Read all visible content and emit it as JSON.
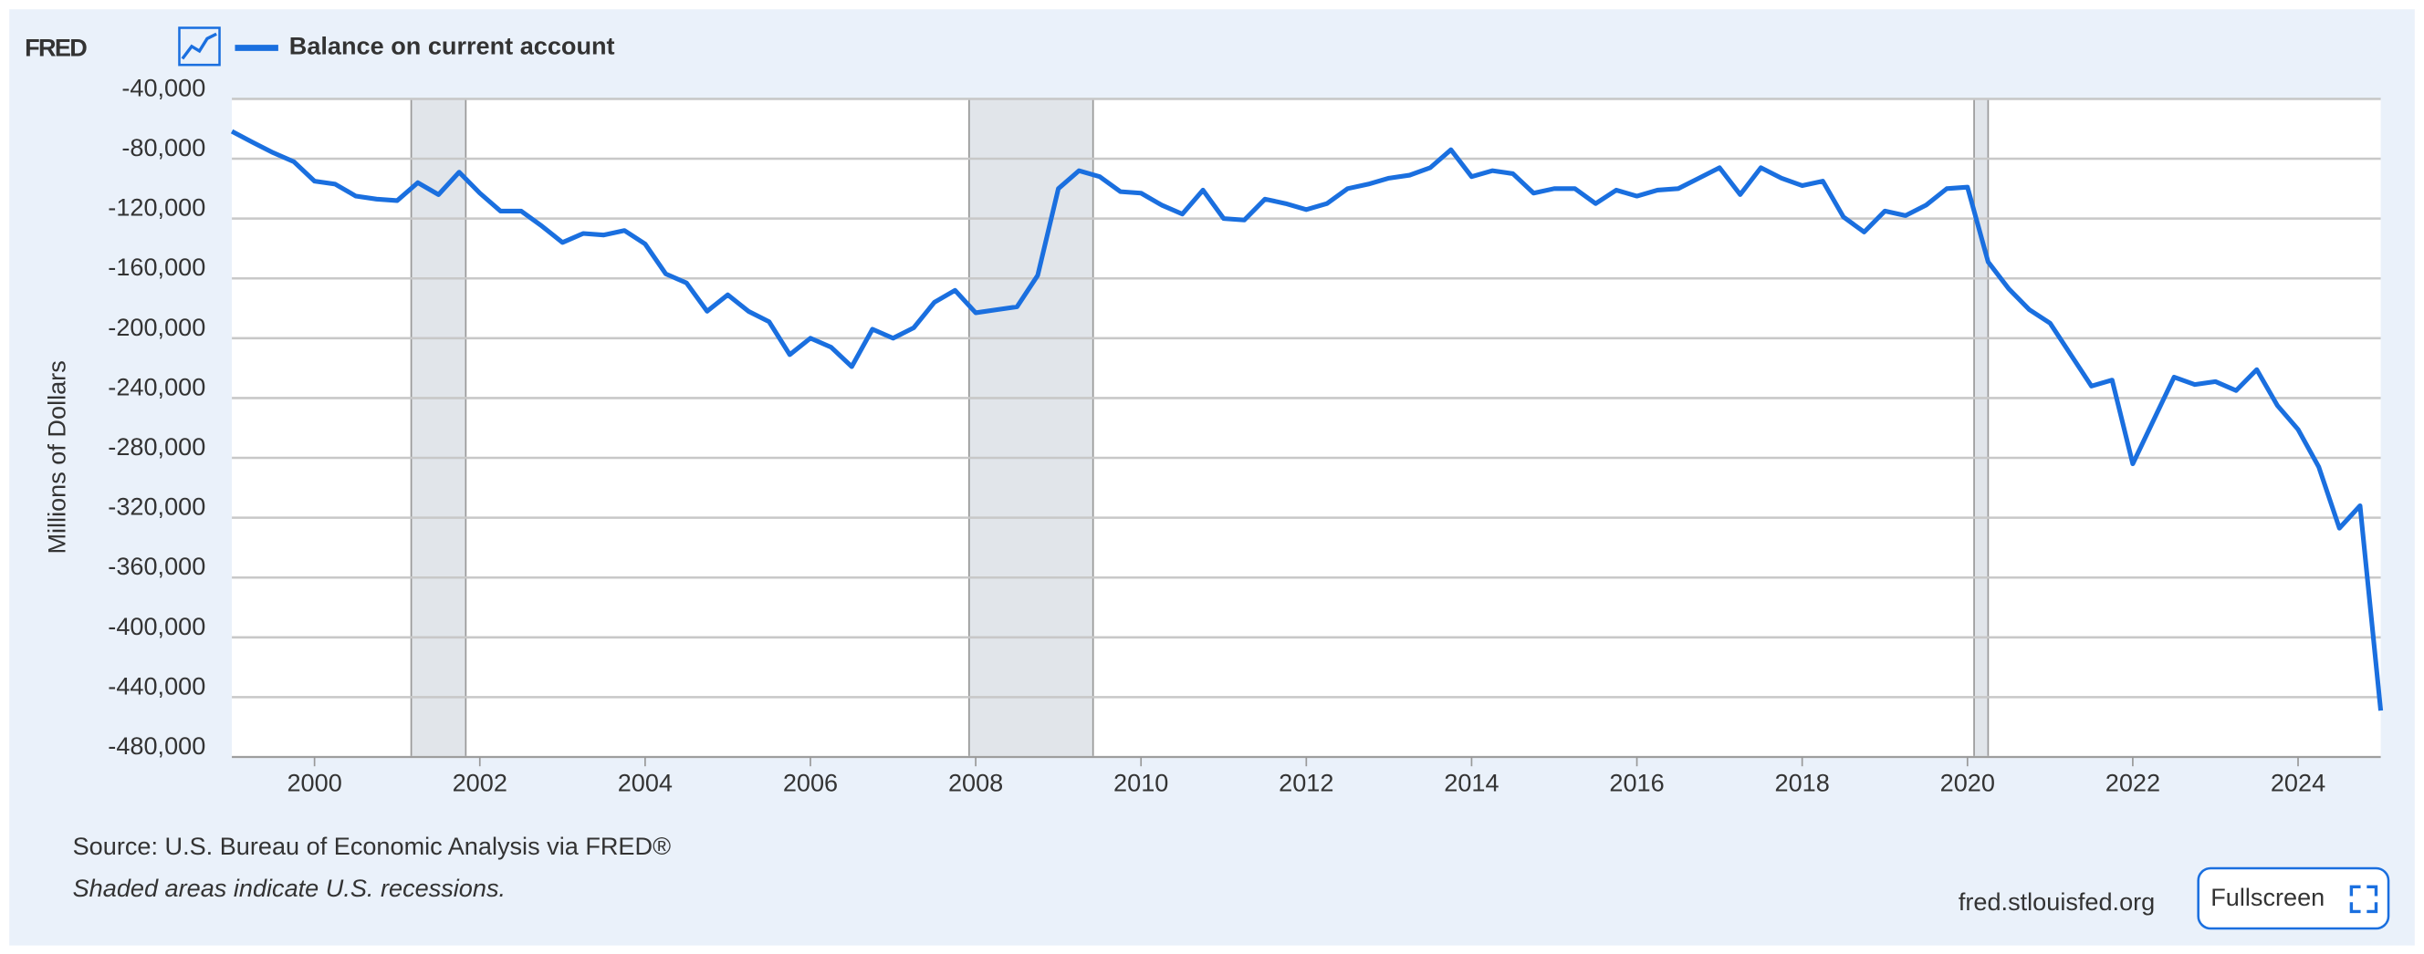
{
  "chart_data": {
    "type": "line",
    "logo": "FRED",
    "ylabel": "Millions of Dollars",
    "source": "Source: U.S. Bureau of Economic Analysis via FRED®",
    "note": "Shaded areas indicate U.S. recessions.",
    "site": "fred.stlouisfed.org",
    "button": "Fullscreen",
    "xlim": [
      1999,
      2025
    ],
    "xticks": [
      2000,
      2002,
      2004,
      2006,
      2008,
      2010,
      2012,
      2014,
      2016,
      2018,
      2020,
      2022,
      2024
    ],
    "ylim": [
      -480000,
      -40000
    ],
    "yticks": [
      {
        "value": -40000,
        "label": "-40,000"
      },
      {
        "value": -80000,
        "label": "-80,000"
      },
      {
        "value": -120000,
        "label": "-120,000"
      },
      {
        "value": -160000,
        "label": "-160,000"
      },
      {
        "value": -200000,
        "label": "-200,000"
      },
      {
        "value": -240000,
        "label": "-240,000"
      },
      {
        "value": -280000,
        "label": "-280,000"
      },
      {
        "value": -320000,
        "label": "-320,000"
      },
      {
        "value": -360000,
        "label": "-360,000"
      },
      {
        "value": -400000,
        "label": "-400,000"
      },
      {
        "value": -440000,
        "label": "-440,000"
      },
      {
        "value": -480000,
        "label": "-480,000"
      }
    ],
    "grid": true,
    "recessions": [
      [
        2001.17,
        2001.83
      ],
      [
        2007.92,
        2009.42
      ],
      [
        2020.08,
        2020.25
      ]
    ],
    "x": [
      1999,
      1999.25,
      1999.5,
      1999.75,
      2000,
      2000.25,
      2000.5,
      2000.75,
      2001,
      2001.25,
      2001.5,
      2001.75,
      2002,
      2002.25,
      2002.5,
      2002.75,
      2003,
      2003.25,
      2003.5,
      2003.75,
      2004,
      2004.25,
      2004.5,
      2004.75,
      2005,
      2005.25,
      2005.5,
      2005.75,
      2006,
      2006.25,
      2006.5,
      2006.75,
      2007,
      2007.25,
      2007.5,
      2007.75,
      2008,
      2008.25,
      2008.5,
      2008.75,
      2009,
      2009.25,
      2009.5,
      2009.75,
      2010,
      2010.25,
      2010.5,
      2010.75,
      2011,
      2011.25,
      2011.5,
      2011.75,
      2012,
      2012.25,
      2012.5,
      2012.75,
      2013,
      2013.25,
      2013.5,
      2013.75,
      2014,
      2014.25,
      2014.5,
      2014.75,
      2015,
      2015.25,
      2015.5,
      2015.75,
      2016,
      2016.25,
      2016.5,
      2016.75,
      2017,
      2017.25,
      2017.5,
      2017.75,
      2018,
      2018.25,
      2018.5,
      2018.75,
      2019,
      2019.25,
      2019.5,
      2019.75,
      2020,
      2020.25,
      2020.5,
      2020.75,
      2021,
      2021.25,
      2021.5,
      2021.75,
      2022,
      2022.25,
      2022.5,
      2022.75,
      2023,
      2023.25,
      2023.5,
      2023.75,
      2024,
      2024.25,
      2024.5,
      2024.75,
      2025
    ],
    "series": [
      {
        "name": "Balance on current account",
        "color": "#1a6fdf",
        "values": [
          -61700,
          -69000,
          -76000,
          -82000,
          -95000,
          -97000,
          -105000,
          -107000,
          -108000,
          -96000,
          -104000,
          -89000,
          -103000,
          -115000,
          -115000,
          -125000,
          -136000,
          -130000,
          -131000,
          -128000,
          -137000,
          -157000,
          -163000,
          -182000,
          -171000,
          -182000,
          -189000,
          -211000,
          -200000,
          -206000,
          -219000,
          -194000,
          -200000,
          -193000,
          -176000,
          -168000,
          -183000,
          -181000,
          -179000,
          -158000,
          -100000,
          -88000,
          -92000,
          -102000,
          -103000,
          -111000,
          -117000,
          -101000,
          -120000,
          -121000,
          -107000,
          -110000,
          -114000,
          -110000,
          -100000,
          -97000,
          -93000,
          -91000,
          -86000,
          -74000,
          -92000,
          -88000,
          -90000,
          -103000,
          -100000,
          -100000,
          -110000,
          -101000,
          -105000,
          -101000,
          -100000,
          -93000,
          -86000,
          -104000,
          -86000,
          -93000,
          -98000,
          -95000,
          -119000,
          -129000,
          -115000,
          -118000,
          -111000,
          -100000,
          -99000,
          -149000,
          -167000,
          -181000,
          -190000,
          -211000,
          -232000,
          -228000,
          -284000,
          -255000,
          -226000,
          -231000,
          -229000,
          -235000,
          -221000,
          -245000,
          -261000,
          -286000,
          -327000,
          -312000,
          -449000
        ]
      }
    ]
  }
}
